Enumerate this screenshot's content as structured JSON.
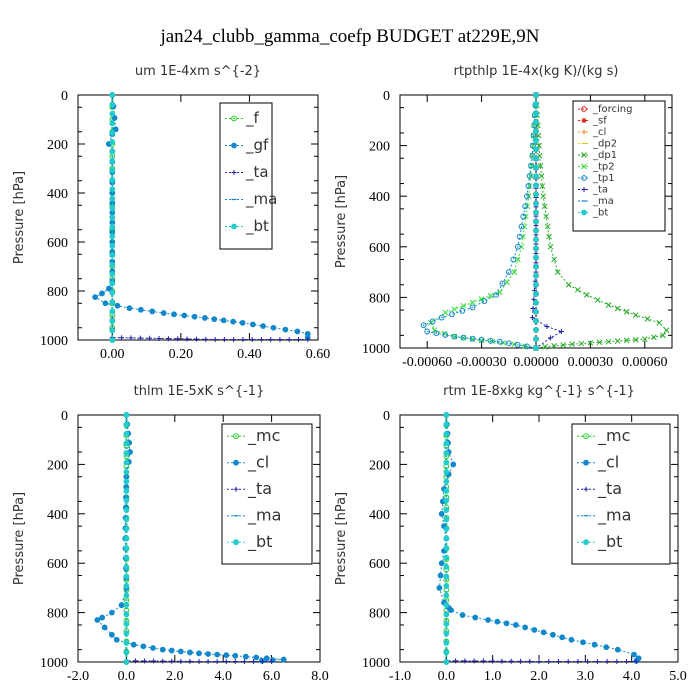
{
  "figure_title": "jan24_clubb_gamma_coefp  BUDGET at229E,9N",
  "chart_data": [
    {
      "type": "line",
      "title": "um  1E-4xm s^{-2}",
      "ylabel": "Pressure [hPa]",
      "xlim": [
        -0.1,
        0.6
      ],
      "ylim": [
        1000,
        0
      ],
      "xticks": [
        "0.00",
        "0.20",
        "0.40",
        "0.60"
      ],
      "yticks": [
        "0",
        "200",
        "400",
        "600",
        "800",
        "1000"
      ],
      "legend_position": "top-right",
      "series": [
        {
          "name": "_f",
          "color": "#22cc22",
          "x": [
            0,
            0,
            0,
            0,
            0,
            0,
            0,
            0,
            0,
            0,
            0
          ],
          "y": [
            0,
            100,
            200,
            300,
            400,
            500,
            600,
            700,
            800,
            900,
            1000
          ]
        },
        {
          "name": "_gf",
          "color": "#1188cc",
          "x": [
            0,
            0.01,
            0,
            -0.01,
            0,
            0,
            0,
            0,
            -0.01,
            -0.03,
            -0.05,
            -0.02,
            0.05,
            0.15,
            0.27,
            0.38,
            0.47,
            0.54,
            0.57,
            0.57
          ],
          "y": [
            0,
            140,
            160,
            200,
            230,
            400,
            600,
            760,
            790,
            810,
            825,
            850,
            870,
            890,
            910,
            930,
            950,
            965,
            975,
            990
          ]
        },
        {
          "name": "_ta",
          "color": "#2222aa",
          "x": [
            0,
            0,
            0,
            0.3,
            0.57
          ],
          "y": [
            0,
            500,
            990,
            998,
            998
          ]
        },
        {
          "name": "_ma",
          "color": "#1188cc",
          "x": [
            0,
            0,
            0
          ],
          "y": [
            0,
            500,
            1000
          ]
        },
        {
          "name": "_bt",
          "color": "#22cccc",
          "x": [
            0,
            0,
            0
          ],
          "y": [
            0,
            500,
            1000
          ]
        }
      ]
    },
    {
      "type": "line",
      "title": "rtpthlp  1E-4x(kg K)/(kg s)",
      "ylabel": "Pressure [hPa]",
      "xlim": [
        -0.00075,
        0.00075
      ],
      "ylim": [
        1000,
        0
      ],
      "xticks": [
        "-0.00060",
        "-0.00030",
        "0.00000",
        "0.00030",
        "0.00060"
      ],
      "yticks": [
        "0",
        "200",
        "400",
        "600",
        "800",
        "1000"
      ],
      "legend_position": "top-right",
      "series": [
        {
          "name": "_forcing",
          "color": "#dd2222",
          "x": [
            0,
            0,
            0
          ],
          "y": [
            0,
            500,
            1000
          ]
        },
        {
          "name": "_sf",
          "color": "#dd2222",
          "x": [
            0,
            0,
            0
          ],
          "y": [
            0,
            500,
            1000
          ]
        },
        {
          "name": "_cl",
          "color": "#ee8822",
          "x": [
            0,
            0,
            0
          ],
          "y": [
            0,
            500,
            1000
          ]
        },
        {
          "name": "_dp2",
          "color": "#ddcc22",
          "x": [
            0,
            0,
            0
          ],
          "y": [
            0,
            500,
            1000
          ]
        },
        {
          "name": "_dp1",
          "color": "#22aa22",
          "x": [
            0,
            2e-05,
            4e-05,
            8e-05,
            0.00012,
            0.00018,
            0.00028,
            0.0004,
            0.00055,
            0.00068,
            0.00072,
            0.0007,
            0.0006,
            0.0004,
            0.0002,
            5e-05,
            0
          ],
          "y": [
            0,
            240,
            400,
            600,
            700,
            750,
            790,
            830,
            870,
            900,
            930,
            950,
            965,
            975,
            985,
            995,
            1000
          ]
        },
        {
          "name": "_tp2",
          "color": "#33dd33",
          "x": [
            0,
            -2e-05,
            -4e-05,
            -8e-05,
            -0.00012,
            -0.0002,
            -0.00035,
            -0.0005,
            -0.00058,
            -0.00056,
            -0.00045,
            -0.0003,
            -0.00012,
            0
          ],
          "y": [
            0,
            240,
            400,
            600,
            700,
            780,
            820,
            860,
            900,
            930,
            955,
            970,
            985,
            1000
          ]
        },
        {
          "name": "_tp1",
          "color": "#1188cc",
          "x": [
            0,
            -2e-05,
            -5e-05,
            -0.0001,
            -0.00015,
            -0.00022,
            -0.00035,
            -0.00052,
            -0.00062,
            -0.0006,
            -0.00045,
            -0.0002,
            0
          ],
          "y": [
            0,
            240,
            400,
            600,
            700,
            790,
            840,
            880,
            910,
            935,
            955,
            975,
            1000
          ]
        },
        {
          "name": "_ta",
          "color": "#2222aa",
          "x": [
            0,
            0,
            -2e-05,
            6e-05,
            0.00014,
            8e-05,
            0
          ],
          "y": [
            0,
            700,
            880,
            915,
            935,
            960,
            1000
          ]
        },
        {
          "name": "_ma",
          "color": "#1188cc",
          "x": [
            0,
            0,
            0
          ],
          "y": [
            0,
            500,
            1000
          ]
        },
        {
          "name": "_bt",
          "color": "#22cccc",
          "x": [
            0,
            0,
            0
          ],
          "y": [
            0,
            500,
            1000
          ]
        }
      ]
    },
    {
      "type": "line",
      "title": "thlm  1E-5xK s^{-1}",
      "ylabel": "Pressure [hPa]",
      "xlim": [
        -2.0,
        8.0
      ],
      "ylim": [
        1000,
        0
      ],
      "xticks": [
        "-2.0",
        "0.0",
        "2.0",
        "4.0",
        "6.0",
        "8.0"
      ],
      "yticks": [
        "0",
        "200",
        "400",
        "600",
        "800",
        "1000"
      ],
      "legend_position": "top-right",
      "series": [
        {
          "name": "_mc",
          "color": "#22cc22",
          "x": [
            0,
            0,
            0,
            0,
            0
          ],
          "y": [
            0,
            250,
            500,
            750,
            1000
          ]
        },
        {
          "name": "_cl",
          "color": "#1188cc",
          "x": [
            0,
            0.15,
            0.1,
            0,
            -0.05,
            0,
            -0.2,
            -0.6,
            -1.0,
            -1.2,
            -0.9,
            -0.6,
            -0.4,
            0.3,
            1.5,
            3.0,
            4.5,
            5.8,
            6.5,
            5.6
          ],
          "y": [
            0,
            150,
            190,
            250,
            500,
            700,
            770,
            800,
            820,
            830,
            860,
            890,
            910,
            930,
            950,
            965,
            975,
            985,
            990,
            995
          ]
        },
        {
          "name": "_ta",
          "color": "#2222aa",
          "x": [
            0,
            0,
            0,
            3.0,
            6.0
          ],
          "y": [
            0,
            500,
            995,
            998,
            998
          ]
        },
        {
          "name": "_ma",
          "color": "#1188cc",
          "x": [
            0,
            0,
            0
          ],
          "y": [
            0,
            500,
            1000
          ]
        },
        {
          "name": "_bt",
          "color": "#22cccc",
          "x": [
            0,
            0,
            0
          ],
          "y": [
            0,
            500,
            1000
          ]
        }
      ]
    },
    {
      "type": "line",
      "title": "rtm  1E-8xkg kg^{-1} s^{-1}",
      "ylabel": "Pressure [hPa]",
      "xlim": [
        -1.0,
        5.0
      ],
      "ylim": [
        1000,
        0
      ],
      "xticks": [
        "-1.0",
        "0.0",
        "1.0",
        "2.0",
        "3.0",
        "4.0",
        "5.0"
      ],
      "yticks": [
        "0",
        "200",
        "400",
        "600",
        "800",
        "1000"
      ],
      "legend_position": "top-right",
      "series": [
        {
          "name": "_mc",
          "color": "#22cc22",
          "x": [
            0,
            0,
            0,
            0,
            0
          ],
          "y": [
            0,
            250,
            500,
            750,
            1000
          ]
        },
        {
          "name": "_cl",
          "color": "#1188cc",
          "x": [
            0,
            0.05,
            0.15,
            0.05,
            -0.05,
            -0.1,
            0,
            -0.1,
            -0.15,
            -0.05,
            0.05,
            0.1,
            0.35,
            0.9,
            1.5,
            2.1,
            2.7,
            3.2,
            3.7,
            4.05,
            4.15,
            4.1
          ],
          "y": [
            0,
            150,
            200,
            240,
            300,
            400,
            500,
            600,
            700,
            760,
            780,
            790,
            810,
            830,
            850,
            880,
            910,
            930,
            950,
            970,
            985,
            995
          ]
        },
        {
          "name": "_ta",
          "color": "#2222aa",
          "x": [
            0,
            0,
            0,
            2.0,
            4.1
          ],
          "y": [
            0,
            500,
            995,
            998,
            998
          ]
        },
        {
          "name": "_ma",
          "color": "#1188cc",
          "x": [
            0,
            0,
            0
          ],
          "y": [
            0,
            500,
            1000
          ]
        },
        {
          "name": "_bt",
          "color": "#22cccc",
          "x": [
            0,
            0,
            0
          ],
          "y": [
            0,
            500,
            1000
          ]
        }
      ]
    }
  ]
}
